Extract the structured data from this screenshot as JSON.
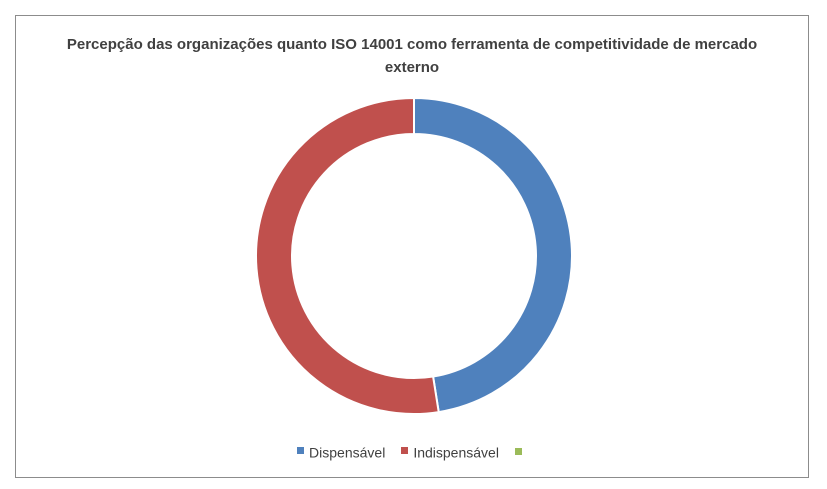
{
  "chart_data": {
    "type": "pie",
    "title": "Percepção das organizações quanto ISO 14001 como ferramenta de competitividade de mercado externo",
    "donut": true,
    "categories": [
      "Dispensável",
      "Indispensável",
      ""
    ],
    "values": [
      47.5,
      52.5,
      0
    ],
    "colors": [
      "#4f81bd",
      "#c0504d",
      "#9bbb59"
    ],
    "legend_position": "bottom"
  }
}
